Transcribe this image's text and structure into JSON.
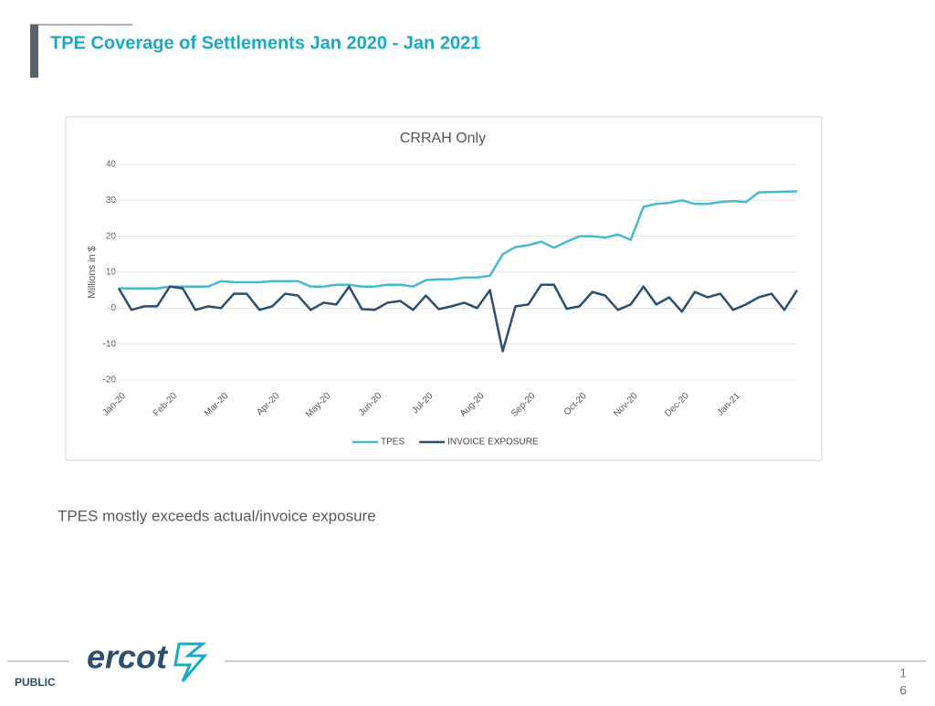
{
  "header": {
    "title": "TPE Coverage of Settlements Jan 2020 - Jan 2021"
  },
  "chart_data": {
    "type": "line",
    "title": "CRRAH Only",
    "y_label": "Millions in $",
    "categories": [
      "Jan-20",
      null,
      null,
      null,
      "Feb-20",
      null,
      null,
      null,
      "Mar-20",
      null,
      null,
      null,
      "Apr-20",
      null,
      null,
      null,
      "May-20",
      null,
      null,
      null,
      "Jun-20",
      null,
      null,
      null,
      "Jul-20",
      null,
      null,
      null,
      "Aug-20",
      null,
      null,
      null,
      "Sep-20",
      null,
      null,
      null,
      "Oct-20",
      null,
      null,
      null,
      "Nov-20",
      null,
      null,
      null,
      "Dec-20",
      null,
      null,
      null,
      "Jan-21",
      null,
      null,
      null,
      null,
      null
    ],
    "series": [
      {
        "name": "TPES",
        "color": "#47b9d1",
        "values": [
          5.5,
          5.5,
          5.5,
          5.5,
          6,
          6,
          6,
          6,
          7.5,
          7.2,
          7.2,
          7.2,
          7.5,
          7.5,
          7.5,
          6,
          6,
          6.5,
          6.5,
          6,
          6,
          6.5,
          6.5,
          6,
          7.8,
          8,
          8,
          8.5,
          8.5,
          9,
          15,
          17,
          17.5,
          18.5,
          16.8,
          18.5,
          20,
          20,
          19.6,
          20.5,
          19,
          28.2,
          29,
          29.3,
          30,
          29,
          29,
          29.5,
          29.8,
          29.5,
          32.2,
          32.3,
          32.4,
          32.5
        ]
      },
      {
        "name": "INVOICE EXPOSURE",
        "color": "#2c4f6d",
        "values": [
          5.5,
          -0.5,
          0.5,
          0.5,
          6,
          5.5,
          -0.5,
          0.5,
          0,
          4,
          4,
          -0.5,
          0.5,
          4,
          3.5,
          -0.5,
          1.5,
          1,
          6,
          -0.3,
          -0.5,
          1.5,
          2,
          -0.5,
          3.5,
          -0.3,
          0.5,
          1.5,
          0,
          5,
          -12,
          0.5,
          1,
          6.5,
          6.5,
          -0.2,
          0.5,
          4.5,
          3.5,
          -0.5,
          1,
          6,
          1,
          3,
          -1,
          4.5,
          3,
          4,
          -0.5,
          1,
          3,
          4,
          -0.5,
          5
        ]
      }
    ],
    "ylim": [
      -20,
      40
    ],
    "yticks": [
      -20,
      -10,
      0,
      10,
      20,
      30,
      40
    ],
    "grid": true,
    "legend": "bottom"
  },
  "caption": "TPES mostly exceeds actual/invoice exposure",
  "footer": {
    "logo": "ercot",
    "classification": "PUBLIC",
    "page_number_lines": [
      "1",
      "6"
    ]
  }
}
